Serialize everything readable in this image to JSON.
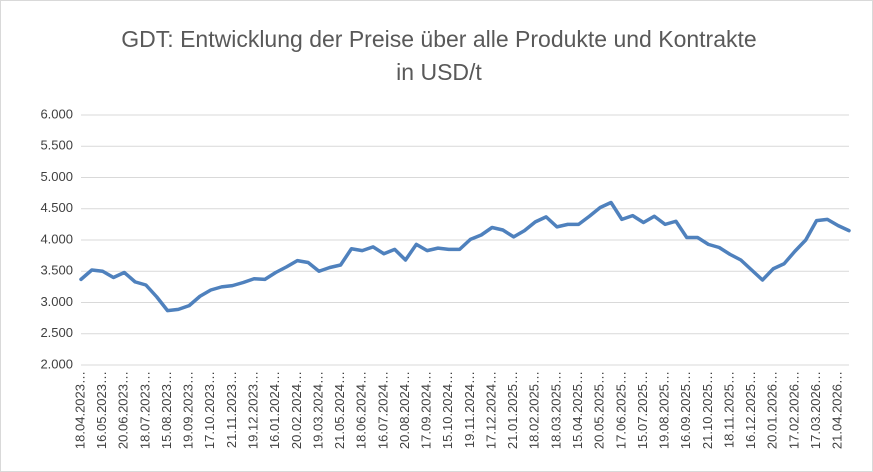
{
  "chart_data": {
    "type": "line",
    "title": "GDT: Entwicklung der Preise über alle Produkte und Kontrakte in USD/t",
    "categories": [
      "18.04.2023…",
      null,
      "16.05.2023…",
      null,
      "20.06.2023…",
      null,
      "18.07.2023…",
      null,
      "15.08.2023…",
      null,
      "19.09.2023…",
      null,
      "17.10.2023…",
      null,
      "21.11.2023…",
      null,
      "19.12.2023…",
      null,
      "16.01.2024…",
      null,
      "20.02.2024…",
      null,
      "19.03.2024…",
      null,
      "21.05.2024…",
      null,
      "18.06.2024…",
      null,
      "16.07.2024…",
      null,
      "20.08.2024…",
      null,
      "17.09.2024…",
      null,
      "15.10.2024…",
      null,
      "19.11.2024…",
      null,
      "17.12.2024…",
      null,
      "21.01.2025…",
      null,
      "18.02.2025…",
      null,
      "18.03.2025…",
      null,
      "15.04.2025…",
      null,
      "20.05.2025…",
      null,
      "17.06.2025…",
      null,
      "15.07.2025…",
      null,
      "19.08.2025…",
      null,
      "16.09.2025…",
      null,
      "21.10.2025…",
      null,
      "18.11.2025…",
      null,
      "16.12.2025…",
      null,
      "20.01.2026…",
      null,
      "17.02.2026…",
      null,
      "17.03.2026…",
      null,
      "21.04.2026…",
      null
    ],
    "series": [
      {
        "color": "#4f81bd",
        "values": [
          3.37,
          3.52,
          3.5,
          3.4,
          3.48,
          3.33,
          3.28,
          3.09,
          2.87,
          2.89,
          2.95,
          3.1,
          3.2,
          3.25,
          3.27,
          3.32,
          3.38,
          3.37,
          3.48,
          3.57,
          3.67,
          3.64,
          3.5,
          3.56,
          3.6,
          3.86,
          3.83,
          3.89,
          3.78,
          3.85,
          3.68,
          3.93,
          3.83,
          3.87,
          3.85,
          3.85,
          4.01,
          4.08,
          4.2,
          4.16,
          4.05,
          4.15,
          4.29,
          4.37,
          4.21,
          4.25,
          4.25,
          4.38,
          4.52,
          4.6,
          4.33,
          4.39,
          4.28,
          4.38,
          4.25,
          4.3,
          4.04,
          4.04,
          3.93,
          3.88,
          3.77,
          3.68,
          3.52,
          3.36,
          3.54,
          3.62,
          3.82,
          4.0,
          4.31,
          4.33,
          4.23,
          4.15
        ]
      }
    ],
    "ylim": [
      2,
      6
    ],
    "yticks": [
      {
        "value": 2,
        "label": "2.000"
      },
      {
        "value": 2.5,
        "label": "2.500"
      },
      {
        "value": 3,
        "label": "3.000"
      },
      {
        "value": 3.5,
        "label": "3.500"
      },
      {
        "value": 4,
        "label": "4.000"
      },
      {
        "value": 4.5,
        "label": "4.500"
      },
      {
        "value": 5,
        "label": "5.000"
      },
      {
        "value": 5.5,
        "label": "5.500"
      },
      {
        "value": 6,
        "label": "6.000"
      }
    ],
    "grid": true
  }
}
